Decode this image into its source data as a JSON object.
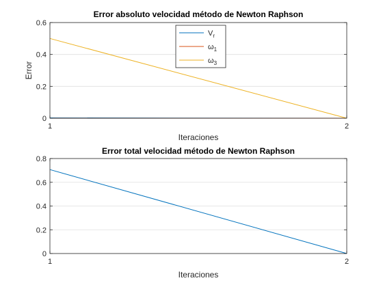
{
  "chart_data": [
    {
      "type": "line",
      "title": "Error absoluto velocidad método de Newton Raphson",
      "xlabel": "Iteraciones",
      "ylabel": "Error",
      "xlim": [
        1,
        2
      ],
      "ylim": [
        0,
        0.6
      ],
      "xticks": [
        "1",
        "2"
      ],
      "yticks": [
        "0",
        "0.2",
        "0.4",
        "0.6"
      ],
      "grid": "horizontal",
      "legend": "top-center",
      "x": [
        1,
        2
      ],
      "series": [
        {
          "name": "V",
          "subscript": "r",
          "values": [
            0.002,
            0.0
          ],
          "color": "#0072BD"
        },
        {
          "name": "ω",
          "subscript": "1",
          "values": [
            0.0,
            0.0
          ],
          "color": "#D95319"
        },
        {
          "name": "ω",
          "subscript": "3",
          "values": [
            0.5,
            0.0
          ],
          "color": "#EDB120"
        }
      ]
    },
    {
      "type": "line",
      "title": "Error total velocidad método de Newton Raphson",
      "xlabel": "Iteraciones",
      "ylabel": "",
      "xlim": [
        1,
        2
      ],
      "ylim": [
        0,
        0.8
      ],
      "xticks": [
        "1",
        "2"
      ],
      "yticks": [
        "0",
        "0.2",
        "0.4",
        "0.6",
        "0.8"
      ],
      "grid": "horizontal",
      "x": [
        1,
        2
      ],
      "series": [
        {
          "values": [
            0.707,
            0.0
          ],
          "color": "#0072BD"
        }
      ]
    }
  ]
}
